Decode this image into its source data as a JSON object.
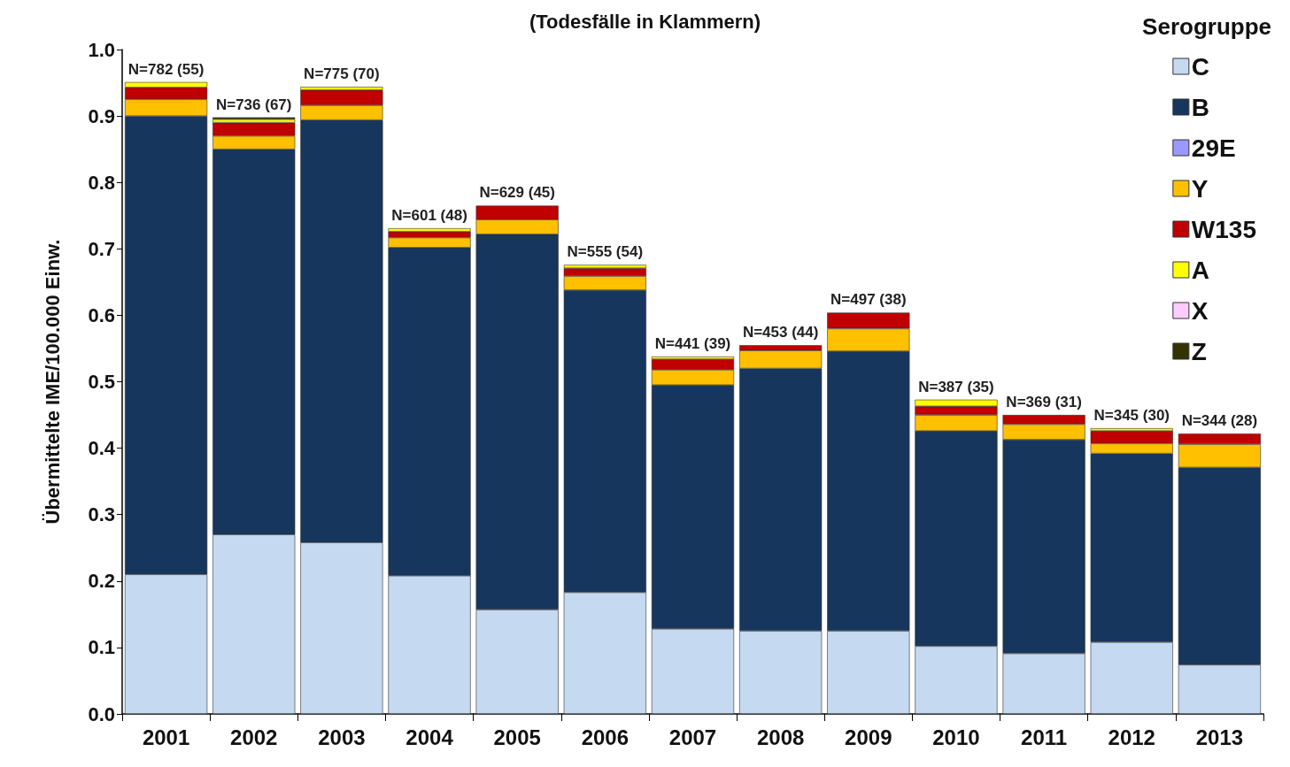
{
  "chart_data": {
    "type": "bar",
    "stacked": true,
    "title": "(Todesfälle in Klammern)",
    "ylabel": "Übermittelte IME/100.000 Einw.",
    "legend_title": "Serogruppe",
    "legend": "top right",
    "grid": false,
    "categories": [
      "2001",
      "2002",
      "2003",
      "2004",
      "2005",
      "2006",
      "2007",
      "2008",
      "2009",
      "2010",
      "2011",
      "2012",
      "2013"
    ],
    "ylim": [
      0,
      1
    ],
    "yticks": [
      {
        "value": 0,
        "label": "0.0"
      },
      {
        "value": 0.1,
        "label": "0.1"
      },
      {
        "value": 0.2,
        "label": "0.2"
      },
      {
        "value": 0.3,
        "label": "0.3"
      },
      {
        "value": 0.4,
        "label": "0.4"
      },
      {
        "value": 0.5,
        "label": "0.5"
      },
      {
        "value": 0.6,
        "label": "0.6"
      },
      {
        "value": 0.7,
        "label": "0.7"
      },
      {
        "value": 0.8,
        "label": "0.8"
      },
      {
        "value": 0.9,
        "label": "0.9"
      },
      {
        "value": 1,
        "label": "1.0"
      }
    ],
    "series": [
      {
        "name": "C",
        "color": "#c5d9f1",
        "values": [
          0.21,
          0.27,
          0.258,
          0.208,
          0.157,
          0.183,
          0.128,
          0.125,
          0.125,
          0.102,
          0.091,
          0.108,
          0.074
        ]
      },
      {
        "name": "B",
        "color": "#17365d",
        "values": [
          0.69,
          0.58,
          0.636,
          0.494,
          0.565,
          0.455,
          0.367,
          0.395,
          0.421,
          0.324,
          0.322,
          0.284,
          0.297
        ]
      },
      {
        "name": "29E",
        "color": "#9999ff",
        "values": [
          0,
          0,
          0,
          0,
          0,
          0,
          0,
          0,
          0,
          0,
          0,
          0,
          0
        ]
      },
      {
        "name": "Y",
        "color": "#ffc000",
        "values": [
          0.025,
          0.02,
          0.022,
          0.015,
          0.022,
          0.021,
          0.023,
          0.027,
          0.034,
          0.024,
          0.023,
          0.015,
          0.035
        ]
      },
      {
        "name": "W135",
        "color": "#c00000",
        "values": [
          0.018,
          0.02,
          0.023,
          0.009,
          0.021,
          0.012,
          0.016,
          0.008,
          0.024,
          0.013,
          0.014,
          0.019,
          0.016
        ]
      },
      {
        "name": "A",
        "color": "#ffff00",
        "values": [
          0.008,
          0.005,
          0.005,
          0.005,
          0,
          0.005,
          0.004,
          0,
          0,
          0.01,
          0,
          0.004,
          0
        ]
      },
      {
        "name": "X",
        "color": "#ffccff",
        "values": [
          0,
          0,
          0,
          0,
          0,
          0,
          0,
          0,
          0,
          0,
          0,
          0,
          0
        ]
      },
      {
        "name": "Z",
        "color": "#333300",
        "values": [
          0,
          0.003,
          0,
          0,
          0,
          0,
          0,
          0,
          0,
          0,
          0,
          0,
          0
        ]
      }
    ],
    "totals": [
      "N=782 (55)",
      "N=736 (67)",
      "N=775 (70)",
      "N=601 (48)",
      "N=629 (45)",
      "N=555 (54)",
      "N=441 (39)",
      "N=453 (44)",
      "N=497 (38)",
      "N=387 (35)",
      "N=369 (31)",
      "N=345 (30)",
      "N=344 (28)"
    ]
  }
}
